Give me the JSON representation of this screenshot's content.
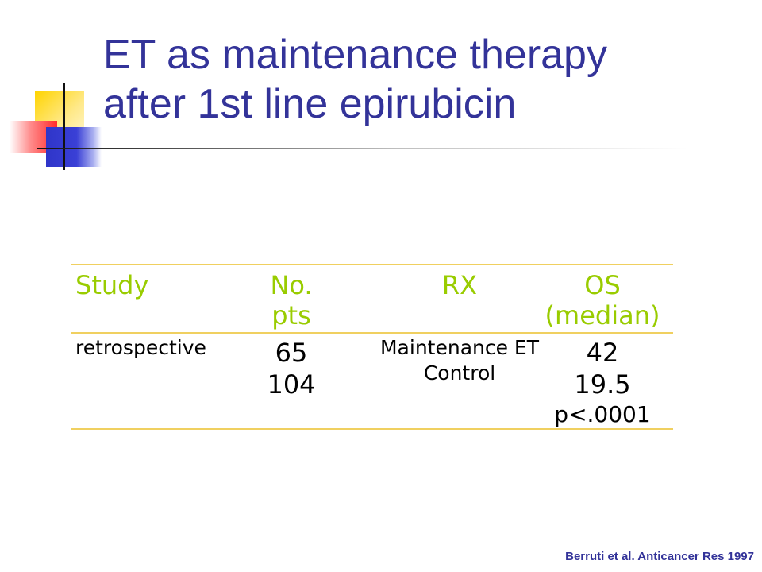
{
  "slide": {
    "title_lines": [
      "ET as maintenance therapy",
      "after 1st line epirubicin"
    ],
    "citation": "Berruti et al. Anticancer Res 1997"
  },
  "table": {
    "headers": {
      "study": "Study",
      "pts_line1": "No.",
      "pts_line2": "pts",
      "rx": "RX",
      "os_line1": "OS",
      "os_line2": "(median)"
    },
    "row": {
      "study": "retrospective",
      "pts": [
        "65",
        "104"
      ],
      "rx": [
        "Maintenance ET",
        "Control"
      ],
      "os": [
        "42",
        "19.5"
      ],
      "p_value": "p<.0001"
    }
  },
  "colors": {
    "title": "#333399",
    "header": "#99cc00",
    "rule": "#f0d060"
  }
}
